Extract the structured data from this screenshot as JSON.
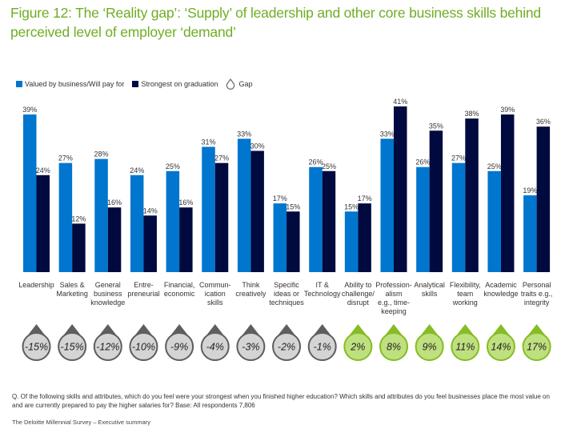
{
  "title": "Figure 12: The ‘Reality gap’: ‘Supply’ of leadership and other core business skills behind perceived level of employer ‘demand’",
  "legend": {
    "items": [
      {
        "label": "Valued by business/Will pay for",
        "color": "#0076ce"
      },
      {
        "label": "Strongest on graduation",
        "color": "#000a3f"
      },
      {
        "label": "Gap",
        "icon": "droplet-icon"
      }
    ]
  },
  "colors": {
    "valued": "#0076ce",
    "strongest": "#000a3f",
    "gap_negative_fill": "#d4d4d4",
    "gap_negative_ring": "#5e5e5e",
    "gap_positive_fill": "#bfe07f",
    "gap_positive_ring": "#86bc25"
  },
  "chart_data": {
    "type": "bar",
    "title": "Figure 12: The ‘Reality gap’: ‘Supply’ of leadership and other core business skills behind perceived level of employer ‘demand’",
    "xlabel": "",
    "ylabel": "",
    "ylim": [
      0,
      41
    ],
    "grid": false,
    "legend_position": "top-left",
    "categories": [
      [
        "Leadership"
      ],
      [
        "Sales &",
        "Marketing"
      ],
      [
        "General",
        "business",
        "knowledge"
      ],
      [
        "Entre-",
        "preneurial"
      ],
      [
        "Financial,",
        "economic"
      ],
      [
        "Commun-",
        "ication",
        "skills"
      ],
      [
        "Think",
        "creatively"
      ],
      [
        "Specific",
        "ideas or",
        "techniques"
      ],
      [
        "IT &",
        "Technology"
      ],
      [
        "Ability to",
        "challenge/",
        "disrupt"
      ],
      [
        "Profession-",
        "alism",
        "e.g., time-",
        "keeping"
      ],
      [
        "Analytical",
        "skills"
      ],
      [
        "Flexibility,",
        "team",
        "working"
      ],
      [
        "Academic",
        "knowledge"
      ],
      [
        "Personal",
        "traits e.g.,",
        "integrity"
      ]
    ],
    "series": [
      {
        "name": "Valued by business/Will pay for",
        "values": [
          39,
          27,
          28,
          24,
          25,
          31,
          33,
          17,
          26,
          15,
          33,
          26,
          27,
          25,
          19
        ]
      },
      {
        "name": "Strongest on graduation",
        "values": [
          24,
          12,
          16,
          14,
          16,
          27,
          30,
          15,
          25,
          17,
          41,
          35,
          38,
          39,
          36
        ]
      }
    ],
    "value_suffix": "%",
    "gap": {
      "name": "Gap",
      "values": [
        -15,
        -15,
        -12,
        -10,
        -9,
        -4,
        -3,
        -2,
        -1,
        2,
        8,
        9,
        11,
        14,
        17
      ]
    }
  },
  "footnote": "Q. Of the following skills and attributes, which do you feel were your strongest when you finished higher education? Which skills and attributes do you feel businesses place the most value on and are currently prepared to pay the higher salaries for? Base: All respondents 7,806",
  "footer": "The Deloitte Millennial Survey – Executive summary"
}
